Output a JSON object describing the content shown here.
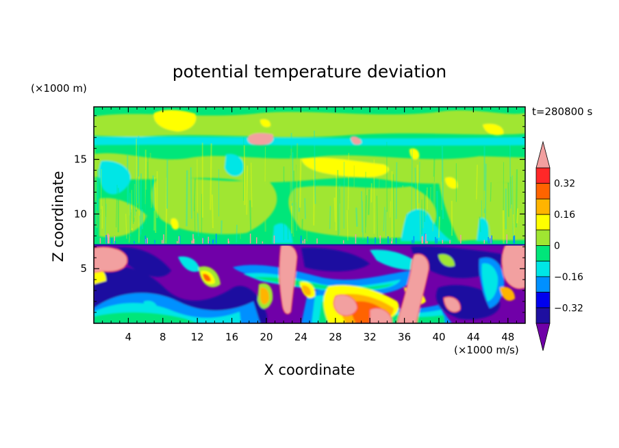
{
  "chart_data": {
    "type": "heatmap",
    "title": "potential temperature deviation",
    "xlabel": "X coordinate",
    "ylabel": "Z coordinate",
    "x_unit": "(×1000 m/s)",
    "y_unit": "(×1000 m)",
    "time_label": "t=280800 s",
    "xlim": [
      0,
      50
    ],
    "ylim": [
      0,
      19.8
    ],
    "x_ticks": [
      "4",
      "8",
      "12",
      "16",
      "20",
      "24",
      "28",
      "32",
      "36",
      "40",
      "44",
      "48"
    ],
    "y_ticks": [
      "5",
      "10",
      "15"
    ],
    "colorbar": {
      "labels": [
        "0.32",
        "0.16",
        "0",
        "−0.16",
        "−0.32"
      ],
      "levels": [
        -0.4,
        -0.32,
        -0.24,
        -0.16,
        -0.08,
        0,
        0.08,
        0.16,
        0.24,
        0.32,
        0.4
      ],
      "colors": [
        "#7000a8",
        "#1e0fa0",
        "#0000ee",
        "#0090ff",
        "#00e6e6",
        "#00e67a",
        "#a0e632",
        "#ffff00",
        "#ffb400",
        "#ff6400",
        "#ff2828",
        "#f2a0a0"
      ]
    },
    "boundary_layer_top": 7.3,
    "regions": [
      {
        "level": "lower-layer background",
        "value": -0.42
      },
      {
        "level": "upper-layer background",
        "value": 0.03
      },
      {
        "level": "warm plume x=21-23",
        "value": 0.45
      },
      {
        "level": "warm blob x=30-34",
        "value": 0.45
      },
      {
        "level": "warm plume x=36-38",
        "value": 0.45
      },
      {
        "level": "warm plume x=48-50",
        "value": 0.45
      },
      {
        "level": "warm edge x=0-3",
        "value": 0.45
      },
      {
        "level": "yellow band z=18-19.5",
        "value": 0.18
      },
      {
        "level": "yellow band z=14-15.5",
        "value": 0.18
      },
      {
        "level": "cyan band z=16.8-17",
        "value": -0.1
      }
    ]
  },
  "colors": {
    "background": "#ffffff",
    "frame": "#000000"
  }
}
